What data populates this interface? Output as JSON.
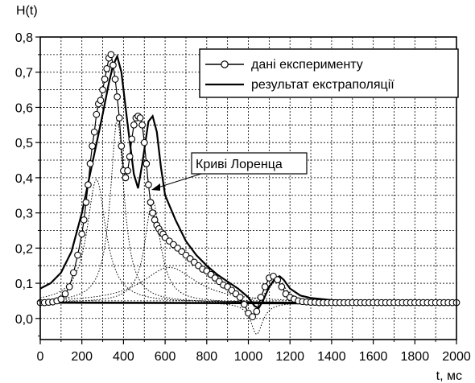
{
  "chart_data": {
    "type": "line",
    "title": "",
    "ylabel": "H(t)",
    "xlabel": "t, мс",
    "xlim": [
      0,
      2000
    ],
    "ylim": [
      -0.06,
      0.8
    ],
    "x_ticks": [
      0,
      200,
      400,
      600,
      800,
      1000,
      1200,
      1400,
      1600,
      1800,
      2000
    ],
    "y_ticks": [
      0.0,
      0.1,
      0.2,
      0.3,
      0.4,
      0.5,
      0.6,
      0.7,
      0.8
    ],
    "x_tick_labels": [
      "0",
      "200",
      "400",
      "600",
      "800",
      "1000",
      "1200",
      "1400",
      "1600",
      "1800",
      "2000"
    ],
    "y_tick_labels": [
      "0,0",
      "0,1",
      "0,2",
      "0,3",
      "0,4",
      "0,5",
      "0,6",
      "0,7",
      "0,8"
    ],
    "grid": true,
    "legend_position": "top-right",
    "annotation": "Криві Лоренца",
    "series": [
      {
        "name": "дані експерименту",
        "style": "line-with-open-circles",
        "color": "#000000",
        "x": [
          0,
          20,
          40,
          60,
          80,
          100,
          120,
          140,
          160,
          180,
          200,
          210,
          220,
          230,
          240,
          250,
          260,
          270,
          280,
          290,
          300,
          310,
          320,
          330,
          340,
          350,
          360,
          370,
          380,
          390,
          400,
          410,
          420,
          430,
          440,
          450,
          460,
          470,
          480,
          490,
          500,
          510,
          520,
          530,
          540,
          550,
          560,
          570,
          580,
          590,
          600,
          620,
          640,
          660,
          680,
          700,
          720,
          740,
          760,
          780,
          800,
          820,
          840,
          860,
          880,
          900,
          920,
          940,
          960,
          980,
          1000,
          1020,
          1040,
          1060,
          1080,
          1100,
          1120,
          1140,
          1160,
          1180,
          1200,
          1220,
          1240,
          1260,
          1280,
          1300,
          1320,
          1340,
          1360,
          1380,
          1400,
          1420,
          1440,
          1460,
          1480,
          1500,
          1520,
          1540,
          1560,
          1580,
          1600,
          1620,
          1640,
          1660,
          1680,
          1700,
          1720,
          1740,
          1760,
          1780,
          1800,
          1820,
          1840,
          1860,
          1880,
          1900,
          1920,
          1940,
          1960,
          1980,
          2000
        ],
        "y": [
          0.045,
          0.045,
          0.046,
          0.047,
          0.05,
          0.055,
          0.07,
          0.09,
          0.13,
          0.18,
          0.24,
          0.28,
          0.33,
          0.38,
          0.44,
          0.49,
          0.53,
          0.58,
          0.61,
          0.62,
          0.65,
          0.68,
          0.71,
          0.74,
          0.75,
          0.72,
          0.68,
          0.63,
          0.57,
          0.49,
          0.42,
          0.4,
          0.42,
          0.46,
          0.51,
          0.55,
          0.57,
          0.575,
          0.57,
          0.55,
          0.5,
          0.44,
          0.38,
          0.33,
          0.3,
          0.28,
          0.265,
          0.255,
          0.245,
          0.24,
          0.23,
          0.22,
          0.21,
          0.2,
          0.19,
          0.18,
          0.17,
          0.16,
          0.15,
          0.14,
          0.135,
          0.125,
          0.115,
          0.105,
          0.095,
          0.09,
          0.08,
          0.07,
          0.06,
          0.04,
          0.015,
          0.005,
          0.02,
          0.06,
          0.09,
          0.115,
          0.12,
          0.11,
          0.09,
          0.07,
          0.06,
          0.055,
          0.05,
          0.048,
          0.047,
          0.046,
          0.046,
          0.045,
          0.045,
          0.045,
          0.045,
          0.045,
          0.045,
          0.045,
          0.045,
          0.045,
          0.045,
          0.045,
          0.045,
          0.045,
          0.045,
          0.045,
          0.045,
          0.045,
          0.045,
          0.045,
          0.045,
          0.045,
          0.045,
          0.045,
          0.045,
          0.045,
          0.045,
          0.045,
          0.045,
          0.045,
          0.045,
          0.045,
          0.045,
          0.045,
          0.045
        ]
      },
      {
        "name": "результат екстраполяції",
        "style": "thick-line",
        "color": "#000000",
        "x": [
          0,
          50,
          100,
          150,
          200,
          250,
          300,
          330,
          350,
          370,
          390,
          420,
          450,
          470,
          490,
          520,
          540,
          560,
          580,
          600,
          650,
          700,
          750,
          800,
          850,
          900,
          950,
          1000,
          1030,
          1050,
          1070,
          1100,
          1130,
          1150,
          1170,
          1200,
          1250,
          1300,
          1400,
          1500,
          1600,
          1700,
          1800,
          1900,
          2000
        ],
        "y": [
          0.085,
          0.1,
          0.13,
          0.19,
          0.3,
          0.44,
          0.58,
          0.67,
          0.72,
          0.745,
          0.7,
          0.55,
          0.41,
          0.37,
          0.44,
          0.56,
          0.575,
          0.53,
          0.43,
          0.35,
          0.28,
          0.22,
          0.18,
          0.15,
          0.125,
          0.105,
          0.085,
          0.06,
          0.035,
          0.03,
          0.05,
          0.09,
          0.115,
          0.12,
          0.11,
          0.085,
          0.065,
          0.058,
          0.052,
          0.05,
          0.049,
          0.048,
          0.048,
          0.048,
          0.048
        ]
      },
      {
        "name": "",
        "style": "baseline",
        "color": "#000000",
        "x": [
          0,
          2000
        ],
        "y": [
          0.045,
          0.042
        ]
      }
    ],
    "lorentz_curves": [
      {
        "center": 270,
        "amplitude": 0.35,
        "width": 55
      },
      {
        "center": 370,
        "amplitude": 0.52,
        "width": 40
      },
      {
        "center": 540,
        "amplitude": 0.29,
        "width": 45
      },
      {
        "center": 620,
        "amplitude": 0.1,
        "width": 160
      },
      {
        "center": 1040,
        "amplitude": -0.09,
        "width": 35
      },
      {
        "center": 1140,
        "amplitude": 0.065,
        "width": 50
      }
    ],
    "lorentz_baseline": 0.045
  }
}
